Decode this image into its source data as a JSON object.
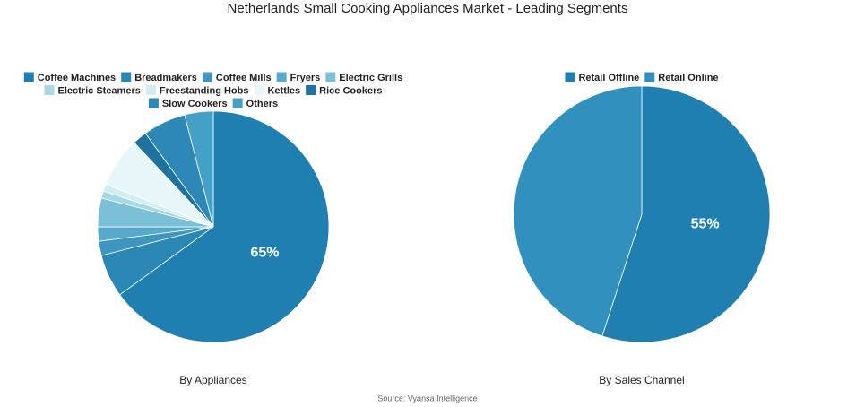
{
  "title": "Netherlands Small Cooking Appliances Market - Leading Segments",
  "source": "Source: Vyansa Intelligence",
  "chart_data": [
    {
      "type": "pie",
      "caption": "By Appliances",
      "categories": [
        "Coffee Machines",
        "Breadmakers",
        "Coffee Mills",
        "Fryers",
        "Electric Grills",
        "Electric Steamers",
        "Freestanding Hobs",
        "Kettles",
        "Rice Cookers",
        "Slow Cookers",
        "Others"
      ],
      "values": [
        65,
        6,
        2,
        2,
        4,
        1,
        1,
        7,
        2,
        6,
        4
      ],
      "value_labels": [
        "65%",
        null,
        null,
        null,
        null,
        null,
        null,
        null,
        null,
        null,
        null
      ],
      "colors": [
        "#1f7fb0",
        "#2b87b4",
        "#3d95c0",
        "#57aacc",
        "#7cc0d8",
        "#a6d8e6",
        "#d1eef3",
        "#e6f6f9",
        "#1e72a0",
        "#2d88b8",
        "#45a0c8"
      ]
    },
    {
      "type": "pie",
      "caption": "By Sales Channel",
      "categories": [
        "Retail Offline",
        "Retail Online"
      ],
      "values": [
        55,
        45
      ],
      "value_labels": [
        "55%",
        null
      ],
      "colors": [
        "#1f7fb0",
        "#3190bd"
      ]
    }
  ]
}
